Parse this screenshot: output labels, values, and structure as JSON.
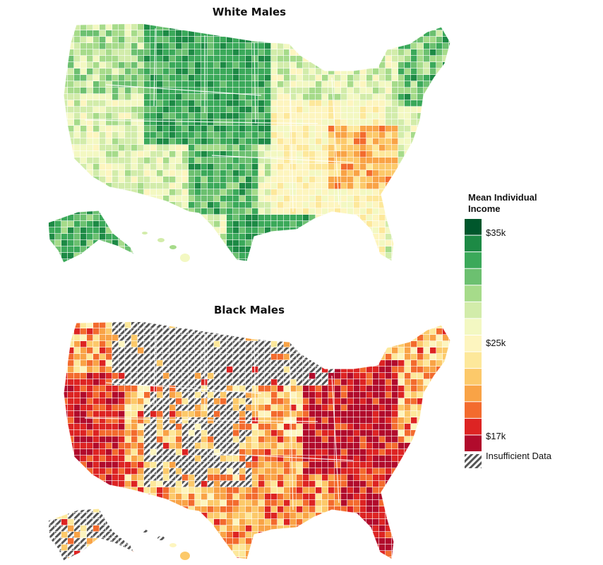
{
  "maps": [
    {
      "title": "White Males",
      "palette": "green"
    },
    {
      "title": "Black Males",
      "palette": "red"
    }
  ],
  "legend": {
    "title": "Mean Individual Income",
    "ticks": [
      "$35k",
      "$25k",
      "$17k"
    ],
    "insufficient_label": "Insufficient Data",
    "colors": [
      "#00572c",
      "#1d8a45",
      "#3ba95a",
      "#6cc070",
      "#a6db8a",
      "#d2ecaa",
      "#f3f8c2",
      "#fdf5bf",
      "#fde89b",
      "#fcc96a",
      "#f9a346",
      "#f36b2e",
      "#dd2423",
      "#b10b2c"
    ]
  }
}
